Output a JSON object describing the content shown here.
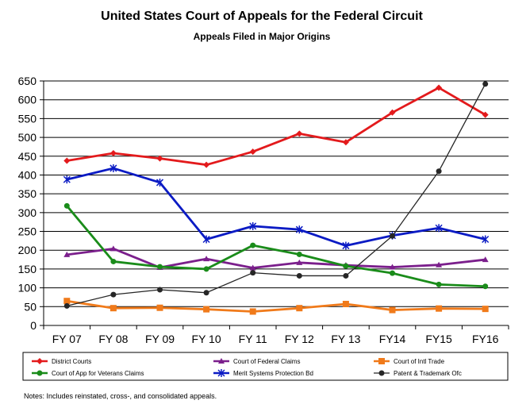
{
  "chart_data": {
    "type": "line",
    "title": "United States Court of Appeals for the Federal Circuit",
    "subtitle": "Appeals Filed in Major Origins",
    "categories": [
      "FY 07",
      "FY 08",
      "FY 09",
      "FY 10",
      "FY 11",
      "FY 12",
      "FY 13",
      "FY14",
      "FY15",
      "FY16"
    ],
    "ylim": [
      0,
      650
    ],
    "yticks": [
      0,
      50,
      100,
      150,
      200,
      250,
      300,
      350,
      400,
      450,
      500,
      550,
      600,
      650
    ],
    "grid": true,
    "legend_position": "bottom",
    "series": [
      {
        "name": "District Courts",
        "color": "#e31a1c",
        "marker": "diamond",
        "values": [
          438,
          458,
          444,
          427,
          462,
          510,
          487,
          566,
          632,
          560
        ]
      },
      {
        "name": "Court of Federal Claims",
        "color": "#7b1f8c",
        "marker": "triangle",
        "values": [
          188,
          204,
          154,
          177,
          153,
          167,
          160,
          155,
          161,
          175
        ]
      },
      {
        "name": "Court of Intl Trade",
        "color": "#f07a1a",
        "marker": "square",
        "values": [
          65,
          46,
          47,
          43,
          37,
          46,
          57,
          41,
          45,
          44
        ]
      },
      {
        "name": "Court of App for Veterans Claims",
        "color": "#1a8c1a",
        "marker": "circle",
        "values": [
          318,
          170,
          156,
          150,
          213,
          189,
          158,
          139,
          109,
          104
        ]
      },
      {
        "name": "Merit Systems Protection Bd",
        "color": "#0b1bc4",
        "marker": "star",
        "values": [
          388,
          418,
          380,
          229,
          264,
          255,
          212,
          239,
          259,
          229
        ]
      },
      {
        "name": "Patent & Trademark Ofc",
        "color": "#262626",
        "marker": "circle",
        "values": [
          52,
          82,
          95,
          87,
          140,
          132,
          132,
          238,
          410,
          642
        ]
      }
    ]
  },
  "notes": "Notes:  Includes reinstated, cross-, and consolidated appeals."
}
